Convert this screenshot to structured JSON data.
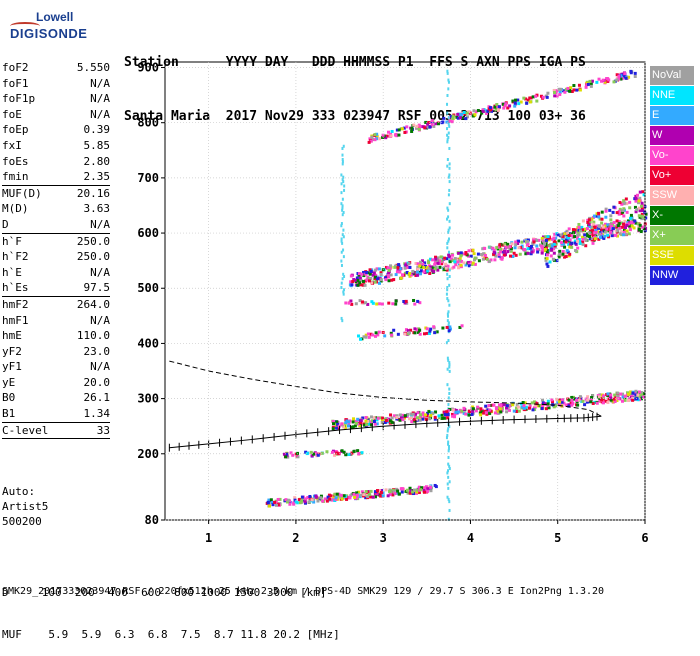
{
  "logo": {
    "line1": "Lowell",
    "line2": "DIGISONDE"
  },
  "header": {
    "row1": "Station      YYYY DAY   DDD HHMMSS P1  FFS S AXN PPS IGA PS",
    "row2": "Santa Maria  2017 Nov29 333 023947 RSF 005 2 713 100 03+ 36"
  },
  "params": {
    "group1": [
      {
        "label": "foF2",
        "value": "5.550"
      },
      {
        "label": "foF1",
        "value": "N/A"
      },
      {
        "label": "foF1p",
        "value": "N/A"
      },
      {
        "label": "foE",
        "value": "N/A"
      },
      {
        "label": "foEp",
        "value": "0.39"
      },
      {
        "label": "fxI",
        "value": "5.85"
      },
      {
        "label": "foEs",
        "value": "2.80"
      },
      {
        "label": "fmin",
        "value": "2.35"
      }
    ],
    "group2": [
      {
        "label": "MUF(D)",
        "value": "20.16"
      },
      {
        "label": "M(D)",
        "value": "3.63"
      },
      {
        "label": "D",
        "value": "N/A"
      }
    ],
    "group3": [
      {
        "label": "h`F",
        "value": "250.0"
      },
      {
        "label": "h`F2",
        "value": "250.0"
      },
      {
        "label": "h`E",
        "value": "N/A"
      },
      {
        "label": "h`Es",
        "value": "97.5"
      }
    ],
    "group4": [
      {
        "label": "hmF2",
        "value": "264.0"
      },
      {
        "label": "hmF1",
        "value": "N/A"
      },
      {
        "label": "hmE",
        "value": "110.0"
      },
      {
        "label": "yF2",
        "value": "23.0"
      },
      {
        "label": "yF1",
        "value": "N/A"
      },
      {
        "label": "yE",
        "value": "20.0"
      },
      {
        "label": "B0",
        "value": "26.1"
      },
      {
        "label": "B1",
        "value": "1.34"
      }
    ],
    "group5": [
      {
        "label": "C-level",
        "value": "33"
      }
    ]
  },
  "auto": {
    "line1": "Auto:",
    "line2": "Artist5",
    "line3": "500200"
  },
  "legend": [
    {
      "label": "NoVal",
      "color": "#a0a0a0"
    },
    {
      "label": "NNE",
      "color": "#00e5ff"
    },
    {
      "label": "E",
      "color": "#33aaff"
    },
    {
      "label": "W",
      "color": "#b000b0"
    },
    {
      "label": "Vo-",
      "color": "#ff44cc"
    },
    {
      "label": "Vo+",
      "color": "#ee0033"
    },
    {
      "label": "SSW",
      "color": "#ffb0b0"
    },
    {
      "label": "X-",
      "color": "#007700"
    },
    {
      "label": "X+",
      "color": "#88cc55"
    },
    {
      "label": "SSE",
      "color": "#dddd00"
    },
    {
      "label": "NNW",
      "color": "#2020dd"
    }
  ],
  "footer": {
    "d_row": "D     100  200  400  600  800 1000 1500 3000 [km]",
    "muf_row": "MUF    5.9  5.9  6.3  6.8  7.5  8.7 11.8 20.2 [MHz]",
    "info": "SMK29_2017333023947.RSF / 220fx512h 25 kHz 2.5 km / DPS-4D SMK29 129 / 29.7 S 306.3 E Ion2Png 1.3.20"
  },
  "chart_data": {
    "type": "scatter",
    "xlim": [
      0.5,
      6
    ],
    "ylim": [
      80,
      910
    ],
    "x_ticks": [
      1,
      2,
      3,
      4,
      5,
      6
    ],
    "y_ticks": [
      80,
      200,
      300,
      400,
      500,
      600,
      700,
      800,
      900
    ],
    "xlabel": "",
    "ylabel": "",
    "traces": [
      {
        "name": "E layer",
        "x0": 1.65,
        "x1": 3.6,
        "y0": 113,
        "y1": 140,
        "spread": 6,
        "count": 260
      },
      {
        "name": "Es",
        "x0": 1.85,
        "x1": 2.75,
        "y0": 200,
        "y1": 206,
        "spread": 4,
        "count": 60
      },
      {
        "name": "F layer",
        "x0": 2.4,
        "x1": 6.0,
        "y0": 255,
        "y1": 310,
        "spread": 8,
        "count": 520
      },
      {
        "name": "F 2nd hop",
        "x0": 2.6,
        "x1": 6.0,
        "y0": 515,
        "y1": 620,
        "spread": 14,
        "count": 620
      },
      {
        "name": "F 2nd hop upper",
        "x0": 4.8,
        "x1": 6.0,
        "y0": 560,
        "y1": 660,
        "spread": 25,
        "count": 260
      },
      {
        "name": "F 3rd hop",
        "x0": 2.8,
        "x1": 5.9,
        "y0": 772,
        "y1": 893,
        "spread": 6,
        "count": 260
      },
      {
        "name": "Mid echoes",
        "x0": 2.7,
        "x1": 3.9,
        "y0": 415,
        "y1": 432,
        "spread": 6,
        "count": 60
      },
      {
        "name": "Sporadic 480",
        "x0": 2.5,
        "x1": 3.5,
        "y0": 476,
        "y1": 478,
        "spread": 4,
        "count": 30
      }
    ],
    "vertical_lines": [
      {
        "x": 3.73,
        "y0": 80,
        "y1": 900
      },
      {
        "x": 2.52,
        "y0": 440,
        "y1": 770
      }
    ],
    "profile_dashed": [
      [
        0.55,
        368
      ],
      [
        1.0,
        350
      ],
      [
        1.5,
        335
      ],
      [
        2.0,
        322
      ],
      [
        2.5,
        310
      ],
      [
        3.0,
        302
      ],
      [
        3.5,
        297
      ],
      [
        4.0,
        294
      ],
      [
        4.5,
        292
      ],
      [
        5.0,
        288
      ],
      [
        5.35,
        280
      ],
      [
        5.5,
        268
      ]
    ],
    "trace_fitted": [
      [
        0.55,
        211
      ],
      [
        1.0,
        218
      ],
      [
        1.5,
        226
      ],
      [
        2.0,
        235
      ],
      [
        2.5,
        243
      ],
      [
        3.0,
        250
      ],
      [
        3.5,
        255
      ],
      [
        4.0,
        259
      ],
      [
        4.5,
        262
      ],
      [
        5.0,
        264
      ],
      [
        5.3,
        265
      ],
      [
        5.5,
        268
      ]
    ]
  }
}
